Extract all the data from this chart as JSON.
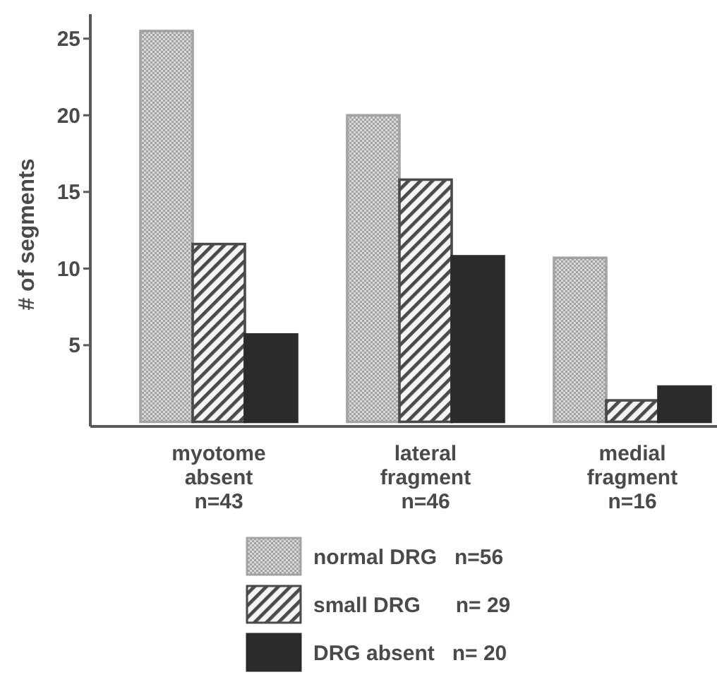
{
  "chart_data": {
    "type": "bar",
    "ylabel": "# of segments",
    "categories": [
      "myotome\nabsent\nn=43",
      "lateral\nfragment\nn=46",
      "medial\nfragment\nn=16"
    ],
    "series": [
      {
        "name": "normal DRG   n=56",
        "color": "#a3a3a3",
        "values": [
          25.5,
          20,
          10.7
        ]
      },
      {
        "name": "small DRG      n= 29",
        "color": "#4a4a4a",
        "values": [
          11.6,
          15.8,
          1.4
        ]
      },
      {
        "name": "DRG absent   n= 20",
        "color": "#2b2b2b",
        "values": [
          5.7,
          10.8,
          2.3
        ]
      }
    ],
    "ylim": [
      -0.3,
      26.6
    ],
    "yticks": [
      5,
      10,
      15,
      20,
      25
    ],
    "grid": false,
    "legend": "bottom"
  }
}
